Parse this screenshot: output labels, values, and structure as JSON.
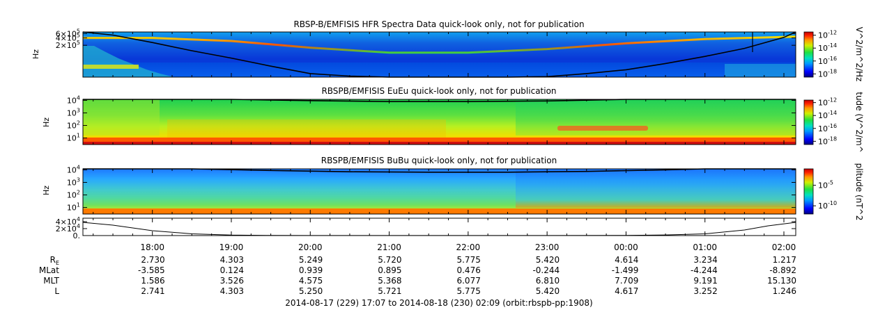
{
  "chart_data": [
    {
      "type": "heatmap",
      "title": "RBSP-B/EMFISIS  HFR Spectra Data quick-look only, not for publication",
      "ylabel": "Hz",
      "yscale": "log",
      "ylim": [
        10000,
        700000
      ],
      "yticks": [
        {
          "value": 600000,
          "base": "6×10",
          "exp": "5"
        },
        {
          "value": 400000,
          "base": "4×10",
          "exp": "5"
        },
        {
          "value": 200000,
          "base": "2×10",
          "exp": "5"
        }
      ],
      "colorbar": {
        "label": "V^2/m^2/Hz",
        "ticks": [
          {
            "value": -12,
            "base": "10",
            "exp": "-12"
          },
          {
            "value": -14,
            "base": "10",
            "exp": "-14"
          },
          {
            "value": -16,
            "base": "10",
            "exp": "-16"
          },
          {
            "value": -18,
            "base": "10",
            "exp": "-18"
          }
        ],
        "range": [
          -18.5,
          -11.5
        ]
      },
      "cutoff_curve": {
        "x": [
          17.12,
          17.5,
          18.0,
          18.5,
          19.0,
          19.5,
          20.0,
          20.5,
          21.0,
          21.5,
          22.0,
          22.5,
          23.0,
          23.5,
          24.0,
          24.5,
          25.0,
          25.5,
          26.0,
          26.15
        ],
        "y": [
          700000,
          520000,
          260000,
          120000,
          60000,
          28000,
          14000,
          11000,
          10000,
          10000,
          10000,
          10000,
          10500,
          14000,
          20000,
          36000,
          70000,
          150000,
          420000,
          700000
        ]
      },
      "emission_line": {
        "x": [
          17.12,
          18.0,
          19.0,
          20.0,
          21.0,
          22.0,
          23.0,
          24.0,
          25.0,
          26.15
        ],
        "y": [
          400000,
          400000,
          300000,
          160000,
          100000,
          100000,
          140000,
          240000,
          360000,
          450000
        ]
      }
    },
    {
      "type": "heatmap",
      "title": "RBSPB/EMFISIS  EuEu quick-look only, not for publication",
      "ylabel": "Hz",
      "yscale": "log",
      "ylim": [
        3,
        12000
      ],
      "yticks": [
        {
          "value": 10000,
          "base": "10",
          "exp": "4"
        },
        {
          "value": 1000,
          "base": "10",
          "exp": "3"
        },
        {
          "value": 100,
          "base": "10",
          "exp": "2"
        },
        {
          "value": 10,
          "base": "10",
          "exp": "1"
        }
      ],
      "colorbar": {
        "label": "tude (V^2/m^",
        "ticks": [
          {
            "value": -12,
            "base": "10",
            "exp": "-12"
          },
          {
            "value": -14,
            "base": "10",
            "exp": "-14"
          },
          {
            "value": -16,
            "base": "10",
            "exp": "-16"
          },
          {
            "value": -18,
            "base": "10",
            "exp": "-18"
          }
        ],
        "range": [
          -18.5,
          -11.5
        ]
      },
      "cutoff_curve": {
        "x": [
          17.12,
          19.0,
          20.0,
          21.0,
          22.0,
          23.0,
          24.0,
          26.15
        ],
        "y": [
          12000,
          12000,
          9500,
          8000,
          8000,
          9000,
          12000,
          12000
        ]
      }
    },
    {
      "type": "heatmap",
      "title": "RBSPB/EMFISIS  BuBu quick-look only, not for publication",
      "ylabel": "Hz",
      "yscale": "log",
      "ylim": [
        3,
        12000
      ],
      "yticks": [
        {
          "value": 10000,
          "base": "10",
          "exp": "4"
        },
        {
          "value": 1000,
          "base": "10",
          "exp": "3"
        },
        {
          "value": 100,
          "base": "10",
          "exp": "2"
        },
        {
          "value": 10,
          "base": "10",
          "exp": "1"
        }
      ],
      "colorbar": {
        "label": "plitude (nT^2",
        "ticks": [
          {
            "value": -5,
            "base": "10",
            "exp": "-5"
          },
          {
            "value": -10,
            "base": "10",
            "exp": "-10"
          }
        ],
        "range": [
          -12,
          -1
        ]
      },
      "cutoff_curve": {
        "x": [
          17.12,
          18.5,
          19.5,
          20.5,
          21.5,
          22.5,
          23.5,
          24.5,
          25.0,
          26.15
        ],
        "y": [
          12000,
          12000,
          9000,
          7000,
          6500,
          6500,
          7500,
          10000,
          12000,
          12000
        ]
      }
    },
    {
      "type": "line",
      "title": "",
      "ylim": [
        0,
        50000
      ],
      "yticks": [
        {
          "value": 40000,
          "base": "4×10",
          "exp": "4"
        },
        {
          "value": 20000,
          "base": "2×10",
          "exp": "4"
        },
        {
          "value": 0,
          "base": "0.",
          "exp": ""
        }
      ],
      "x": [
        17.12,
        17.5,
        18.0,
        18.5,
        19.0,
        19.5,
        20.0,
        21.0,
        22.0,
        23.0,
        24.0,
        24.5,
        25.0,
        25.5,
        25.8,
        26.15
      ],
      "y": [
        38000,
        30000,
        14000,
        5000,
        1500,
        400,
        150,
        100,
        100,
        150,
        600,
        1800,
        5000,
        16000,
        28000,
        38000
      ]
    }
  ],
  "time_axis": {
    "start_hour": 17.12,
    "end_hour": 26.15,
    "ticks": [
      {
        "hour": 18,
        "label": "18:00"
      },
      {
        "hour": 19,
        "label": "19:00"
      },
      {
        "hour": 20,
        "label": "20:00"
      },
      {
        "hour": 21,
        "label": "21:00"
      },
      {
        "hour": 22,
        "label": "22:00"
      },
      {
        "hour": 23,
        "label": "23:00"
      },
      {
        "hour": 24,
        "label": "00:00"
      },
      {
        "hour": 25,
        "label": "01:00"
      },
      {
        "hour": 26,
        "label": "02:00"
      }
    ]
  },
  "ephemeris": {
    "rows": [
      {
        "label": "R",
        "sub": "E",
        "values": [
          "2.730",
          "4.303",
          "5.249",
          "5.720",
          "5.775",
          "5.420",
          "4.614",
          "3.234",
          "1.217"
        ]
      },
      {
        "label": "MLat",
        "sub": "",
        "values": [
          "-3.585",
          "0.124",
          "0.939",
          "0.895",
          "0.476",
          "-0.244",
          "-1.499",
          "-4.244",
          "-8.892"
        ]
      },
      {
        "label": "MLT",
        "sub": "",
        "values": [
          "1.586",
          "3.526",
          "4.575",
          "5.368",
          "6.077",
          "6.810",
          "7.709",
          "9.191",
          "15.130"
        ]
      },
      {
        "label": "L",
        "sub": "",
        "values": [
          "2.741",
          "4.303",
          "5.250",
          "5.721",
          "5.775",
          "5.420",
          "4.617",
          "3.252",
          "1.246"
        ]
      }
    ]
  },
  "footer": "2014-08-17 (229) 17:07 to 2014-08-18 (230) 02:09 (orbit:rbspb-pp:1908)",
  "colors": {
    "frame": "#000000",
    "background": "#ffffff"
  }
}
